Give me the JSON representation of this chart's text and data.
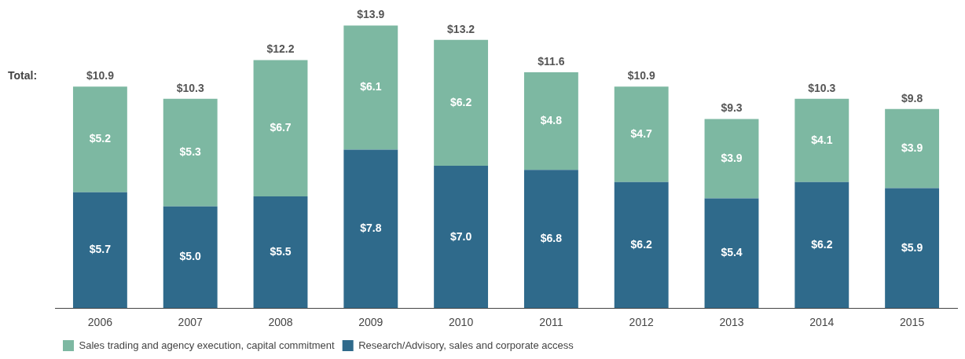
{
  "chart_data": {
    "type": "bar",
    "stacked": true,
    "categories": [
      "2006",
      "2007",
      "2008",
      "2009",
      "2010",
      "2011",
      "2012",
      "2013",
      "2014",
      "2015"
    ],
    "series": [
      {
        "name": "Research/Advisory, sales and corporate access",
        "color": "#2f6a8b",
        "values": [
          5.7,
          5.0,
          5.5,
          7.8,
          7.0,
          6.8,
          6.2,
          5.4,
          6.2,
          5.9
        ],
        "value_labels": [
          "$5.7",
          "$5.0",
          "$5.5",
          "$7.8",
          "$7.0",
          "$6.8",
          "$6.2",
          "$5.4",
          "$6.2",
          "$5.9"
        ]
      },
      {
        "name": "Sales trading and agency execution, capital commitment",
        "color": "#7db8a2",
        "values": [
          5.2,
          5.3,
          6.7,
          6.1,
          6.2,
          4.8,
          4.7,
          3.9,
          4.1,
          3.9
        ],
        "value_labels": [
          "$5.2",
          "$5.3",
          "$6.7",
          "$6.1",
          "$6.2",
          "$4.8",
          "$4.7",
          "$3.9",
          "$4.1",
          "$3.9"
        ]
      }
    ],
    "totals": [
      "$10.9",
      "$10.3",
      "$12.2",
      "$13.9",
      "$13.2",
      "$11.6",
      "$10.9",
      "$9.3",
      "$10.3",
      "$9.8"
    ],
    "annotations": [
      "Total:"
    ],
    "tick_labels": "x",
    "legend": "bottom left"
  }
}
